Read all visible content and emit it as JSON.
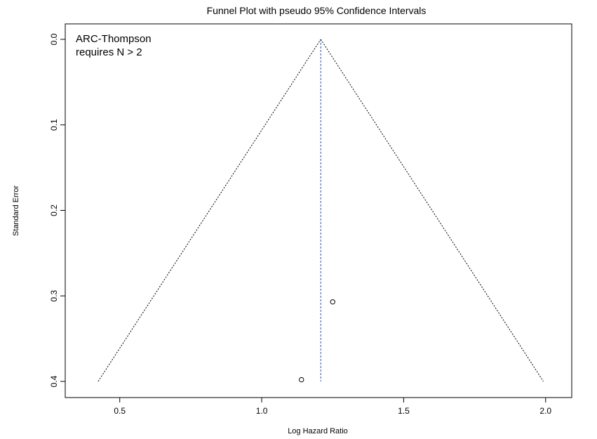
{
  "chart_data": {
    "type": "scatter",
    "title": "Funnel Plot with pseudo 95% Confidence Intervals",
    "xlabel": "Log Hazard Ratio",
    "ylabel": "Standard Error",
    "xlim": [
      0.35,
      2.05
    ],
    "ylim": [
      0.0,
      0.4
    ],
    "y_reversed": true,
    "x_ticks": [
      0.5,
      1.0,
      1.5,
      2.0
    ],
    "x_tick_labels": [
      "0.5",
      "1.0",
      "1.5",
      "2.0"
    ],
    "y_ticks": [
      0.0,
      0.1,
      0.2,
      0.3,
      0.4
    ],
    "y_tick_labels": [
      "0.0",
      "0.1",
      "0.2",
      "0.3",
      "0.4"
    ],
    "grid": false,
    "points": [
      {
        "x": 1.14,
        "y": 0.398
      },
      {
        "x": 1.25,
        "y": 0.307
      }
    ],
    "pooled_estimate": 1.208,
    "funnel": {
      "apex": {
        "x": 1.208,
        "y": 0.0
      },
      "left_base": {
        "x": 0.424,
        "y": 0.4
      },
      "right_base": {
        "x": 1.992,
        "y": 0.4
      }
    },
    "colors": {
      "points": "#000000",
      "funnel": "#000000",
      "pooled_line": "#1f4fb4",
      "axes": "#000000"
    },
    "annotation": {
      "lines": [
        "ARC-Thompson",
        "requires N > 2"
      ]
    }
  }
}
